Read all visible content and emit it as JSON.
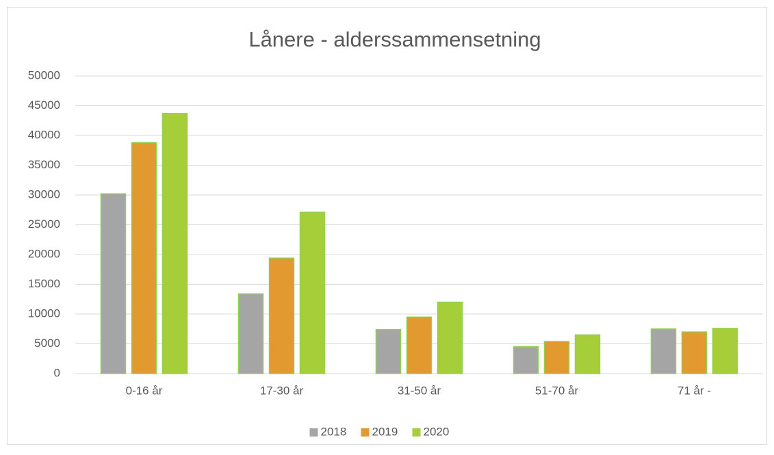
{
  "chart_data": {
    "type": "bar",
    "title": "Lånere - alderssammensetning",
    "categories": [
      "0-16 år",
      "17-30 år",
      "31-50 år",
      "51-70 år",
      "71 år -"
    ],
    "series": [
      {
        "name": "2018",
        "color": "#a5a5a5",
        "values": [
          30200,
          13400,
          7400,
          4500,
          7500
        ]
      },
      {
        "name": "2019",
        "color": "#e2992f",
        "values": [
          38800,
          19400,
          9500,
          5400,
          7000
        ]
      },
      {
        "name": "2020",
        "color": "#a6ce39",
        "values": [
          43700,
          27100,
          12000,
          6500,
          7600
        ]
      }
    ],
    "ylim": [
      0,
      50000
    ],
    "yticks": [
      0,
      5000,
      10000,
      15000,
      20000,
      25000,
      30000,
      35000,
      40000,
      45000,
      50000
    ],
    "grid": true,
    "legend": "bottom"
  }
}
